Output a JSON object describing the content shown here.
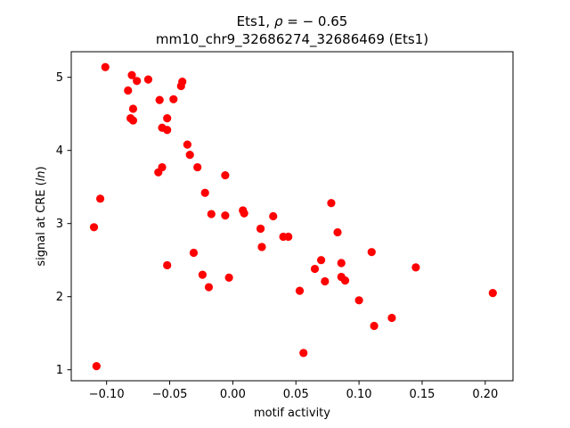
{
  "chart_data": {
    "type": "scatter",
    "title_line1_prefix": "Ets1, ",
    "title_line1_rho": "ρ",
    "title_line1_value": " = − 0.65",
    "title_line2": "mm10_chr9_32686274_32686469 (Ets1)",
    "xlabel": "motif activity",
    "ylabel_prefix": "signal at CRE (",
    "ylabel_italic": "ln",
    "ylabel_suffix": ")",
    "xlim": [
      -0.128,
      0.222
    ],
    "ylim": [
      0.85,
      5.35
    ],
    "xticks": [
      {
        "value": -0.1,
        "label": "−0.10"
      },
      {
        "value": -0.05,
        "label": "−0.05"
      },
      {
        "value": 0.0,
        "label": "0.00"
      },
      {
        "value": 0.05,
        "label": "0.05"
      },
      {
        "value": 0.1,
        "label": "0.10"
      },
      {
        "value": 0.15,
        "label": "0.15"
      },
      {
        "value": 0.2,
        "label": "0.20"
      }
    ],
    "yticks": [
      {
        "value": 1,
        "label": "1"
      },
      {
        "value": 2,
        "label": "2"
      },
      {
        "value": 3,
        "label": "3"
      },
      {
        "value": 4,
        "label": "4"
      },
      {
        "value": 5,
        "label": "5"
      }
    ],
    "grid": false,
    "marker_color": "#ff0000",
    "points": [
      [
        -0.101,
        5.14
      ],
      [
        -0.08,
        5.03
      ],
      [
        -0.076,
        4.95
      ],
      [
        -0.067,
        4.97
      ],
      [
        -0.04,
        4.94
      ],
      [
        -0.041,
        4.88
      ],
      [
        -0.083,
        4.82
      ],
      [
        -0.058,
        4.69
      ],
      [
        -0.047,
        4.7
      ],
      [
        -0.079,
        4.57
      ],
      [
        -0.081,
        4.44
      ],
      [
        -0.079,
        4.41
      ],
      [
        -0.052,
        4.44
      ],
      [
        -0.056,
        4.31
      ],
      [
        -0.052,
        4.28
      ],
      [
        -0.036,
        4.08
      ],
      [
        -0.034,
        3.94
      ],
      [
        -0.028,
        3.77
      ],
      [
        -0.056,
        3.77
      ],
      [
        -0.059,
        3.7
      ],
      [
        -0.006,
        3.66
      ],
      [
        -0.022,
        3.42
      ],
      [
        -0.105,
        3.34
      ],
      [
        -0.017,
        3.13
      ],
      [
        -0.006,
        3.11
      ],
      [
        0.008,
        3.18
      ],
      [
        0.009,
        3.14
      ],
      [
        0.032,
        3.1
      ],
      [
        0.078,
        3.28
      ],
      [
        -0.11,
        2.95
      ],
      [
        0.022,
        2.93
      ],
      [
        0.083,
        2.88
      ],
      [
        0.04,
        2.82
      ],
      [
        0.044,
        2.82
      ],
      [
        0.023,
        2.68
      ],
      [
        -0.031,
        2.6
      ],
      [
        0.11,
        2.61
      ],
      [
        0.07,
        2.5
      ],
      [
        0.086,
        2.46
      ],
      [
        -0.052,
        2.43
      ],
      [
        0.065,
        2.38
      ],
      [
        0.145,
        2.4
      ],
      [
        -0.024,
        2.3
      ],
      [
        0.086,
        2.27
      ],
      [
        -0.003,
        2.26
      ],
      [
        0.089,
        2.22
      ],
      [
        0.073,
        2.21
      ],
      [
        -0.019,
        2.13
      ],
      [
        0.053,
        2.08
      ],
      [
        0.206,
        2.05
      ],
      [
        0.1,
        1.95
      ],
      [
        0.126,
        1.71
      ],
      [
        0.112,
        1.6
      ],
      [
        0.056,
        1.23
      ],
      [
        -0.108,
        1.05
      ]
    ]
  }
}
